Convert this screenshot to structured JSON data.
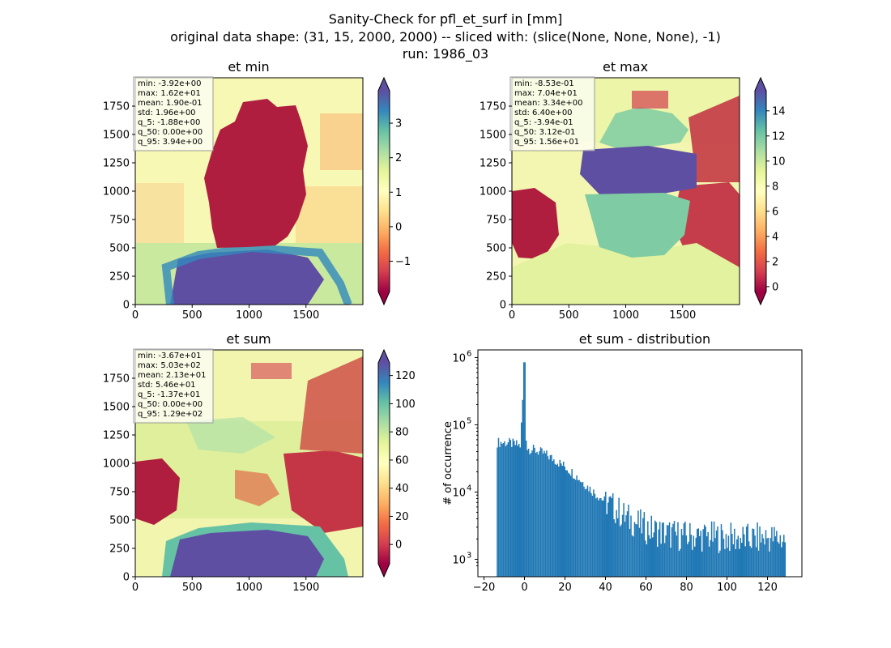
{
  "figure": {
    "title_lines": [
      "Sanity-Check for pfl_et_surf in [mm]",
      "original data shape: (31, 15, 2000, 2000) -- sliced with: (slice(None, None, None), -1)",
      "run: 1986_03"
    ]
  },
  "colors": {
    "spectral": [
      "#9e0142",
      "#d53e4f",
      "#f46d43",
      "#fdae61",
      "#fee08b",
      "#ffffbf",
      "#e6f598",
      "#abdda4",
      "#66c2a5",
      "#3288bd",
      "#5e4fa2"
    ],
    "histogram_bar": "#1f77b4"
  },
  "chart_data": [
    {
      "type": "heatmap",
      "title": "et min",
      "x_ticks": [
        0,
        500,
        1000,
        1500
      ],
      "y_ticks": [
        0,
        250,
        500,
        750,
        1000,
        1250,
        1500,
        1750
      ],
      "xlim": [
        0,
        2000
      ],
      "ylim": [
        0,
        2000
      ],
      "stats": [
        "min: -3.92e+00",
        "max: 1.62e+01",
        "mean: 1.90e-01",
        "std: 1.96e+00",
        "q_5: -1.88e+00",
        "q_50: 0.00e+00",
        "q_95: 3.94e+00"
      ],
      "colorbar": {
        "min": -1.88,
        "max": 3.94,
        "ticks": [
          -1,
          0,
          1,
          2,
          3
        ],
        "tick_labels": [
          "−1",
          "0",
          "1",
          "2",
          "3"
        ],
        "extend": "both",
        "cmap": "Spectral"
      }
    },
    {
      "type": "heatmap",
      "title": "et max",
      "x_ticks": [
        0,
        500,
        1000,
        1500
      ],
      "y_ticks": [
        0,
        250,
        500,
        750,
        1000,
        1250,
        1500,
        1750
      ],
      "xlim": [
        0,
        2000
      ],
      "ylim": [
        0,
        2000
      ],
      "stats": [
        "min: -8.53e-01",
        "max: 7.04e+01",
        "mean: 3.34e+00",
        "std: 6.40e+00",
        "q_5: -3.94e-01",
        "q_50: 3.12e-01",
        "q_95: 1.56e+01"
      ],
      "colorbar": {
        "min": -0.394,
        "max": 15.6,
        "ticks": [
          0,
          2,
          4,
          6,
          8,
          10,
          12,
          14
        ],
        "tick_labels": [
          "0",
          "2",
          "4",
          "6",
          "8",
          "10",
          "12",
          "14"
        ],
        "extend": "both",
        "cmap": "Spectral"
      }
    },
    {
      "type": "heatmap",
      "title": "et sum",
      "x_ticks": [
        0,
        500,
        1000,
        1500
      ],
      "y_ticks": [
        0,
        250,
        500,
        750,
        1000,
        1250,
        1500,
        1750
      ],
      "xlim": [
        0,
        2000
      ],
      "ylim": [
        0,
        2000
      ],
      "stats": [
        "min: -3.67e+01",
        "max: 5.03e+02",
        "mean: 2.13e+01",
        "std: 5.46e+01",
        "q_5: -1.37e+01",
        "q_50: 0.00e+00",
        "q_95: 1.29e+02"
      ],
      "colorbar": {
        "min": -13.7,
        "max": 129,
        "ticks": [
          0,
          20,
          40,
          60,
          80,
          100,
          120
        ],
        "tick_labels": [
          "0",
          "20",
          "40",
          "60",
          "80",
          "100",
          "120"
        ],
        "extend": "both",
        "cmap": "Spectral"
      }
    },
    {
      "type": "histogram",
      "title": "et sum - distribution",
      "ylabel": "# of occurrence",
      "xlim": [
        -23,
        137
      ],
      "ylim": [
        550,
        1300000
      ],
      "yscale": "log",
      "x_ticks": [
        -20,
        0,
        20,
        40,
        60,
        80,
        100,
        120
      ],
      "x_tick_labels": [
        "−20",
        "0",
        "20",
        "40",
        "60",
        "80",
        "100",
        "120"
      ],
      "y_ticks": [
        1000,
        10000,
        100000,
        1000000
      ],
      "y_tick_labels": [
        "10",
        "10",
        "10",
        "10"
      ],
      "y_tick_exponents": [
        "3",
        "4",
        "5",
        "6"
      ],
      "range": [
        -13.7,
        129
      ],
      "profile": [
        [
          -13.7,
          55000
        ],
        [
          -8,
          54000
        ],
        [
          -2,
          49000
        ],
        [
          0,
          850000
        ],
        [
          1,
          45000
        ],
        [
          5,
          42000
        ],
        [
          10,
          37000
        ],
        [
          15,
          30000
        ],
        [
          20,
          24000
        ],
        [
          25,
          18000
        ],
        [
          30,
          13000
        ],
        [
          35,
          9500
        ],
        [
          40,
          7200
        ],
        [
          45,
          5600
        ],
        [
          50,
          4200
        ],
        [
          55,
          3500
        ],
        [
          60,
          2900
        ],
        [
          70,
          2400
        ],
        [
          80,
          2200
        ],
        [
          90,
          2200
        ],
        [
          100,
          2100
        ],
        [
          110,
          2000
        ],
        [
          120,
          2100
        ],
        [
          129,
          2000
        ]
      ]
    }
  ]
}
